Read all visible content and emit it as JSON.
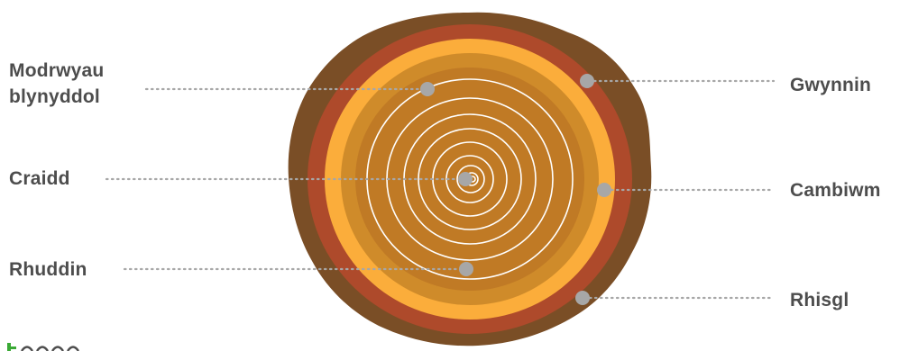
{
  "labels": {
    "growth_rings_line1": "Modrwyau",
    "growth_rings_line2": "blynyddol",
    "pith": "Craidd",
    "heartwood": "Rhuddin",
    "sapwood": "Gwynnin",
    "cambium": "Cambiwm",
    "bark": "Rhisgl"
  },
  "colors": {
    "outer_bark": "#7a4e26",
    "inner_bark": "#ae4a2b",
    "cambium": "#fbad3b",
    "sapwood": "#cf8b2a",
    "heartwood": "#c07a25",
    "rings": "#ffffff",
    "marker": "#a7a7a7",
    "leader_line": "#a7a7a7",
    "label_text": "#4d4d4d",
    "brand_green": "#3aa935"
  }
}
